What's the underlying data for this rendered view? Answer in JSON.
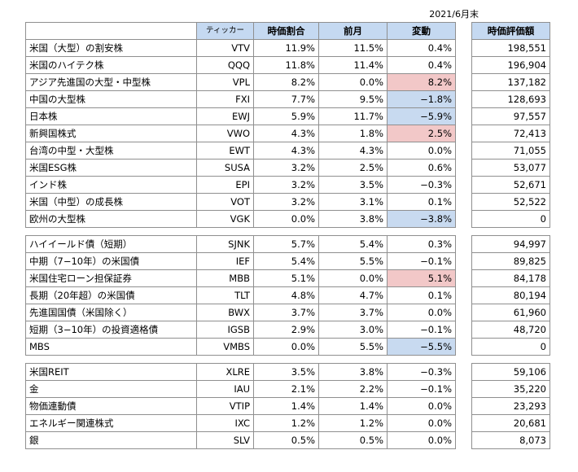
{
  "date_label": "2021/6月末",
  "headers": {
    "name": "",
    "ticker": "ティッカー",
    "weight": "時価割合",
    "prev": "前月",
    "change": "変動",
    "value": "時価評価額"
  },
  "highlight_colors": {
    "increase": "#f2c8c8",
    "decrease": "#c8daf0",
    "header": "#c5d9f1"
  },
  "groups": [
    {
      "rows": [
        {
          "name": "米国（大型）の割安株",
          "ticker": "VTV",
          "weight": "11.9%",
          "prev": "11.5%",
          "change": "0.4%",
          "value": "198,551",
          "hl": ""
        },
        {
          "name": "米国のハイテク株",
          "ticker": "QQQ",
          "weight": "11.8%",
          "prev": "11.4%",
          "change": "0.4%",
          "value": "196,904",
          "hl": ""
        },
        {
          "name": "アジア先進国の大型・中型株",
          "ticker": "VPL",
          "weight": "8.2%",
          "prev": "0.0%",
          "change": "8.2%",
          "value": "137,182",
          "hl": "increase"
        },
        {
          "name": "中国の大型株",
          "ticker": "FXI",
          "weight": "7.7%",
          "prev": "9.5%",
          "change": "−1.8%",
          "value": "128,693",
          "hl": "decrease"
        },
        {
          "name": "日本株",
          "ticker": "EWJ",
          "weight": "5.9%",
          "prev": "11.7%",
          "change": "−5.9%",
          "value": "97,557",
          "hl": "decrease"
        },
        {
          "name": "新興国株式",
          "ticker": "VWO",
          "weight": "4.3%",
          "prev": "1.8%",
          "change": "2.5%",
          "value": "72,413",
          "hl": "increase"
        },
        {
          "name": "台湾の中型・大型株",
          "ticker": "EWT",
          "weight": "4.3%",
          "prev": "4.3%",
          "change": "0.0%",
          "value": "71,055",
          "hl": ""
        },
        {
          "name": "米国ESG株",
          "ticker": "SUSA",
          "weight": "3.2%",
          "prev": "2.5%",
          "change": "0.6%",
          "value": "53,077",
          "hl": ""
        },
        {
          "name": "インド株",
          "ticker": "EPI",
          "weight": "3.2%",
          "prev": "3.5%",
          "change": "−0.3%",
          "value": "52,671",
          "hl": ""
        },
        {
          "name": "米国（中型）の成長株",
          "ticker": "VOT",
          "weight": "3.2%",
          "prev": "3.1%",
          "change": "0.1%",
          "value": "52,522",
          "hl": ""
        },
        {
          "name": "欧州の大型株",
          "ticker": "VGK",
          "weight": "0.0%",
          "prev": "3.8%",
          "change": "−3.8%",
          "value": "0",
          "hl": "decrease"
        }
      ]
    },
    {
      "rows": [
        {
          "name": "ハイイールド債（短期）",
          "ticker": "SJNK",
          "weight": "5.7%",
          "prev": "5.4%",
          "change": "0.3%",
          "value": "94,997",
          "hl": ""
        },
        {
          "name": "中期（7−10年）の米国債",
          "ticker": "IEF",
          "weight": "5.4%",
          "prev": "5.5%",
          "change": "−0.1%",
          "value": "89,825",
          "hl": ""
        },
        {
          "name": "米国住宅ローン担保証券",
          "ticker": "MBB",
          "weight": "5.1%",
          "prev": "0.0%",
          "change": "5.1%",
          "value": "84,178",
          "hl": "increase"
        },
        {
          "name": "長期（20年超）の米国債",
          "ticker": "TLT",
          "weight": "4.8%",
          "prev": "4.7%",
          "change": "0.1%",
          "value": "80,194",
          "hl": ""
        },
        {
          "name": "先進国国債（米国除く）",
          "ticker": "BWX",
          "weight": "3.7%",
          "prev": "3.7%",
          "change": "0.0%",
          "value": "61,960",
          "hl": ""
        },
        {
          "name": "短期（3−10年）の投資適格債",
          "ticker": "IGSB",
          "weight": "2.9%",
          "prev": "3.0%",
          "change": "−0.1%",
          "value": "48,720",
          "hl": ""
        },
        {
          "name": "MBS",
          "ticker": "VMBS",
          "weight": "0.0%",
          "prev": "5.5%",
          "change": "−5.5%",
          "value": "0",
          "hl": "decrease"
        }
      ]
    },
    {
      "rows": [
        {
          "name": "米国REIT",
          "ticker": "XLRE",
          "weight": "3.5%",
          "prev": "3.8%",
          "change": "−0.3%",
          "value": "59,106",
          "hl": ""
        },
        {
          "name": "金",
          "ticker": "IAU",
          "weight": "2.1%",
          "prev": "2.2%",
          "change": "−0.1%",
          "value": "35,220",
          "hl": ""
        },
        {
          "name": "物価連動債",
          "ticker": "VTIP",
          "weight": "1.4%",
          "prev": "1.4%",
          "change": "0.0%",
          "value": "23,293",
          "hl": ""
        },
        {
          "name": "エネルギー関連株式",
          "ticker": "IXC",
          "weight": "1.2%",
          "prev": "1.2%",
          "change": "0.0%",
          "value": "20,681",
          "hl": ""
        },
        {
          "name": "銀",
          "ticker": "SLV",
          "weight": "0.5%",
          "prev": "0.5%",
          "change": "0.0%",
          "value": "8,073",
          "hl": ""
        }
      ]
    }
  ]
}
